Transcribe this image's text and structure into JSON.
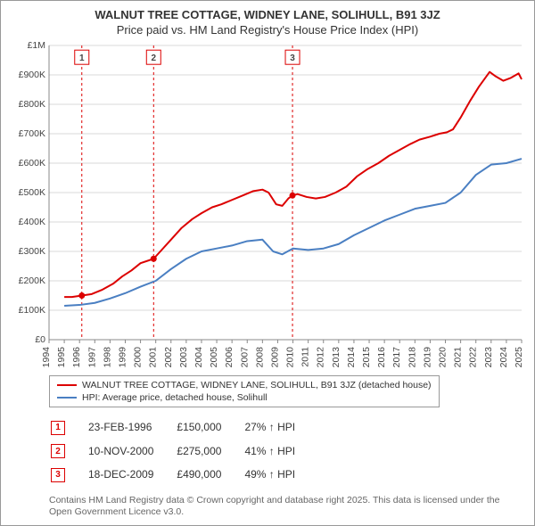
{
  "title": {
    "main": "WALNUT TREE COTTAGE, WIDNEY LANE, SOLIHULL, B91 3JZ",
    "sub": "Price paid vs. HM Land Registry's House Price Index (HPI)"
  },
  "chart": {
    "type": "line",
    "background_color": "#ffffff",
    "grid_color": "#d9d9d9",
    "axis_color": "#888888",
    "tick_fontsize": 10.5,
    "x": {
      "min": 1994,
      "max": 2025,
      "ticks": [
        1994,
        1995,
        1996,
        1997,
        1998,
        1999,
        2000,
        2001,
        2002,
        2003,
        2004,
        2005,
        2006,
        2007,
        2008,
        2009,
        2010,
        2011,
        2012,
        2013,
        2014,
        2015,
        2016,
        2017,
        2018,
        2019,
        2020,
        2021,
        2022,
        2023,
        2024,
        2025
      ]
    },
    "y": {
      "min": 0,
      "max": 1000000,
      "ticks": [
        0,
        100000,
        200000,
        300000,
        400000,
        500000,
        600000,
        700000,
        800000,
        900000,
        1000000
      ],
      "tick_labels": [
        "£0",
        "£100K",
        "£200K",
        "£300K",
        "£400K",
        "£500K",
        "£600K",
        "£700K",
        "£800K",
        "£900K",
        "£1M"
      ]
    },
    "series": [
      {
        "name": "WALNUT TREE COTTAGE, WIDNEY LANE, SOLIHULL, B91 3JZ (detached house)",
        "color": "#dc0000",
        "line_width": 2,
        "data": [
          [
            1995.0,
            145000
          ],
          [
            1995.5,
            145000
          ],
          [
            1996.15,
            150000
          ],
          [
            1996.8,
            155000
          ],
          [
            1997.5,
            170000
          ],
          [
            1998.2,
            190000
          ],
          [
            1998.8,
            215000
          ],
          [
            1999.4,
            235000
          ],
          [
            2000.0,
            260000
          ],
          [
            2000.86,
            275000
          ],
          [
            2001.3,
            300000
          ],
          [
            2002.0,
            340000
          ],
          [
            2002.7,
            380000
          ],
          [
            2003.4,
            410000
          ],
          [
            2004.0,
            430000
          ],
          [
            2004.7,
            450000
          ],
          [
            2005.3,
            460000
          ],
          [
            2006.0,
            475000
          ],
          [
            2006.7,
            490000
          ],
          [
            2007.4,
            505000
          ],
          [
            2008.0,
            510000
          ],
          [
            2008.4,
            500000
          ],
          [
            2008.9,
            460000
          ],
          [
            2009.3,
            455000
          ],
          [
            2009.7,
            480000
          ],
          [
            2009.97,
            490000
          ],
          [
            2010.3,
            495000
          ],
          [
            2010.9,
            485000
          ],
          [
            2011.5,
            480000
          ],
          [
            2012.1,
            485000
          ],
          [
            2012.8,
            500000
          ],
          [
            2013.5,
            520000
          ],
          [
            2014.2,
            555000
          ],
          [
            2014.9,
            580000
          ],
          [
            2015.6,
            600000
          ],
          [
            2016.3,
            625000
          ],
          [
            2017.0,
            645000
          ],
          [
            2017.7,
            665000
          ],
          [
            2018.3,
            680000
          ],
          [
            2019.0,
            690000
          ],
          [
            2019.6,
            700000
          ],
          [
            2020.1,
            705000
          ],
          [
            2020.5,
            715000
          ],
          [
            2021.0,
            755000
          ],
          [
            2021.6,
            810000
          ],
          [
            2022.2,
            860000
          ],
          [
            2022.9,
            910000
          ],
          [
            2023.3,
            895000
          ],
          [
            2023.8,
            880000
          ],
          [
            2024.3,
            890000
          ],
          [
            2024.8,
            905000
          ],
          [
            2025.0,
            885000
          ]
        ]
      },
      {
        "name": "HPI: Average price, detached house, Solihull",
        "color": "#4a7fc2",
        "line_width": 2,
        "data": [
          [
            1995.0,
            115000
          ],
          [
            1996.0,
            118000
          ],
          [
            1997.0,
            125000
          ],
          [
            1998.0,
            140000
          ],
          [
            1999.0,
            158000
          ],
          [
            2000.0,
            180000
          ],
          [
            2001.0,
            200000
          ],
          [
            2002.0,
            240000
          ],
          [
            2003.0,
            275000
          ],
          [
            2004.0,
            300000
          ],
          [
            2005.0,
            310000
          ],
          [
            2006.0,
            320000
          ],
          [
            2007.0,
            335000
          ],
          [
            2008.0,
            340000
          ],
          [
            2008.7,
            300000
          ],
          [
            2009.3,
            290000
          ],
          [
            2010.0,
            310000
          ],
          [
            2011.0,
            305000
          ],
          [
            2012.0,
            310000
          ],
          [
            2013.0,
            325000
          ],
          [
            2014.0,
            355000
          ],
          [
            2015.0,
            380000
          ],
          [
            2016.0,
            405000
          ],
          [
            2017.0,
            425000
          ],
          [
            2018.0,
            445000
          ],
          [
            2019.0,
            455000
          ],
          [
            2020.0,
            465000
          ],
          [
            2021.0,
            500000
          ],
          [
            2022.0,
            560000
          ],
          [
            2023.0,
            595000
          ],
          [
            2024.0,
            600000
          ],
          [
            2025.0,
            615000
          ]
        ]
      }
    ],
    "event_lines": [
      {
        "x": 1996.15,
        "color": "#dc0000",
        "dash": "3,3"
      },
      {
        "x": 2000.86,
        "color": "#dc0000",
        "dash": "3,3"
      },
      {
        "x": 2009.97,
        "color": "#dc0000",
        "dash": "3,3"
      }
    ],
    "event_markers": [
      {
        "n": "1",
        "x": 1996.15,
        "y": 960000,
        "color": "#dc0000",
        "point_y": 150000
      },
      {
        "n": "2",
        "x": 2000.86,
        "y": 960000,
        "color": "#dc0000",
        "point_y": 275000
      },
      {
        "n": "3",
        "x": 2009.97,
        "y": 960000,
        "color": "#dc0000",
        "point_y": 490000
      }
    ]
  },
  "legend": [
    {
      "color": "#dc0000",
      "label": "WALNUT TREE COTTAGE, WIDNEY LANE, SOLIHULL, B91 3JZ (detached house)"
    },
    {
      "color": "#4a7fc2",
      "label": "HPI: Average price, detached house, Solihull"
    }
  ],
  "events": [
    {
      "n": "1",
      "color": "#dc0000",
      "date": "23-FEB-1996",
      "price": "£150,000",
      "hpi": "27% ↑ HPI"
    },
    {
      "n": "2",
      "color": "#dc0000",
      "date": "10-NOV-2000",
      "price": "£275,000",
      "hpi": "41% ↑ HPI"
    },
    {
      "n": "3",
      "color": "#dc0000",
      "date": "18-DEC-2009",
      "price": "£490,000",
      "hpi": "49% ↑ HPI"
    }
  ],
  "footer": "Contains HM Land Registry data © Crown copyright and database right 2025. This data is licensed under the Open Government Licence v3.0."
}
